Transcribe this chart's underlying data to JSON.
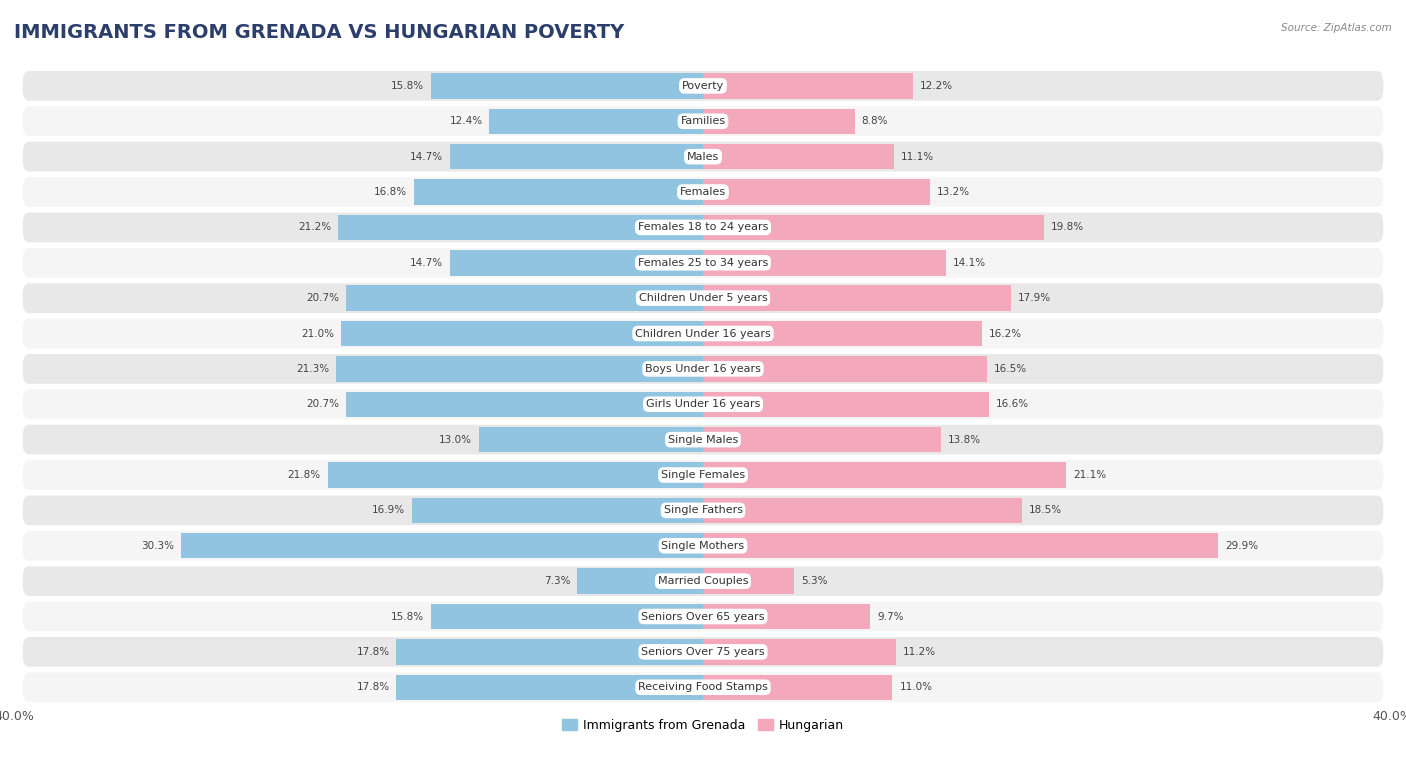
{
  "title": "IMMIGRANTS FROM GRENADA VS HUNGARIAN POVERTY",
  "source": "Source: ZipAtlas.com",
  "categories": [
    "Poverty",
    "Families",
    "Males",
    "Females",
    "Females 18 to 24 years",
    "Females 25 to 34 years",
    "Children Under 5 years",
    "Children Under 16 years",
    "Boys Under 16 years",
    "Girls Under 16 years",
    "Single Males",
    "Single Females",
    "Single Fathers",
    "Single Mothers",
    "Married Couples",
    "Seniors Over 65 years",
    "Seniors Over 75 years",
    "Receiving Food Stamps"
  ],
  "grenada_values": [
    15.8,
    12.4,
    14.7,
    16.8,
    21.2,
    14.7,
    20.7,
    21.0,
    21.3,
    20.7,
    13.0,
    21.8,
    16.9,
    30.3,
    7.3,
    15.8,
    17.8,
    17.8
  ],
  "hungarian_values": [
    12.2,
    8.8,
    11.1,
    13.2,
    19.8,
    14.1,
    17.9,
    16.2,
    16.5,
    16.6,
    13.8,
    21.1,
    18.5,
    29.9,
    5.3,
    9.7,
    11.2,
    11.0
  ],
  "grenada_color": "#90c4e0",
  "hungarian_color": "#f4a8bc",
  "grenada_label": "Immigrants from Grenada",
  "hungarian_label": "Hungarian",
  "axis_max": 40.0,
  "background_color": "#ffffff",
  "row_alt_color": "#e8e8e8",
  "row_main_color": "#f5f5f5",
  "title_fontsize": 14,
  "label_fontsize": 8,
  "value_fontsize": 7.5
}
